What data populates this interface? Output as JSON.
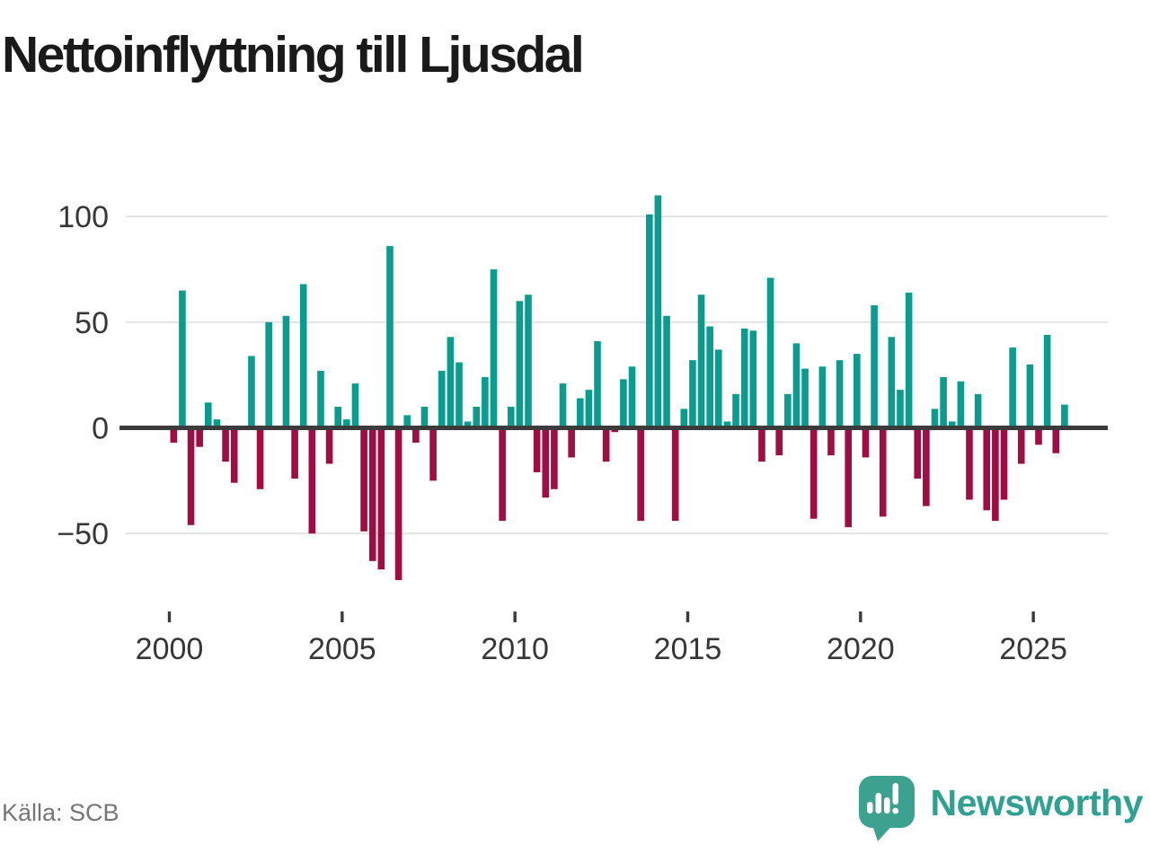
{
  "title": "Nettoinflyttning till Ljusdal",
  "source_label": "Källa: SCB",
  "brand": {
    "name": "Newsworthy",
    "icon": "bar-chart-speech-bubble-icon"
  },
  "colors": {
    "positive_bar": "#0a9c8e",
    "negative_bar": "#a00d42",
    "gridline": "#e3e3e3",
    "zero_line": "#3b3b3b",
    "axis_text": "#363636",
    "title_text": "#1a1a1a",
    "source_text": "#767676",
    "brand_bubble": "#3ca28f",
    "brand_text": "#2fa092"
  },
  "chart_data": {
    "type": "bar",
    "title": "Nettoinflyttning till Ljusdal",
    "frequency": "quarterly",
    "start_period": "2000Q1",
    "end_period": "2025Q4",
    "grid": true,
    "ylim": [
      -80,
      118
    ],
    "x_tick_labels": [
      "2000",
      "2005",
      "2010",
      "2015",
      "2020",
      "2025"
    ],
    "y_ticks": [
      100,
      50,
      0,
      -50
    ],
    "y_tick_labels": [
      "100",
      "50",
      "0",
      "−50"
    ],
    "values_by_year": {
      "2000": [
        -7,
        65,
        -46,
        -9
      ],
      "2001": [
        12,
        4,
        -16,
        -26
      ],
      "2002": [
        0,
        34,
        -29,
        50
      ],
      "2003": [
        0,
        53,
        -24,
        68
      ],
      "2004": [
        -50,
        27,
        -17,
        10
      ],
      "2005": [
        4,
        21,
        -49,
        -63
      ],
      "2006": [
        -67,
        86,
        -72,
        6
      ],
      "2007": [
        -7,
        10,
        -25,
        27
      ],
      "2008": [
        43,
        31,
        3,
        10
      ],
      "2009": [
        24,
        75,
        -44,
        10
      ],
      "2010": [
        60,
        63,
        -21,
        -33
      ],
      "2011": [
        -29,
        21,
        -14,
        14
      ],
      "2012": [
        18,
        41,
        -16,
        -2
      ],
      "2013": [
        23,
        29,
        -44,
        101
      ],
      "2014": [
        110,
        53,
        -44,
        9
      ],
      "2015": [
        32,
        63,
        48,
        37
      ],
      "2016": [
        3,
        16,
        47,
        46
      ],
      "2017": [
        -16,
        71,
        -13,
        16
      ],
      "2018": [
        40,
        28,
        -43,
        29
      ],
      "2019": [
        -13,
        32,
        -47,
        35
      ],
      "2020": [
        -14,
        58,
        -42,
        43
      ],
      "2021": [
        18,
        64,
        -24,
        -37
      ],
      "2022": [
        9,
        24,
        3,
        22
      ],
      "2023": [
        -34,
        16,
        -39,
        -44
      ],
      "2024": [
        -34,
        38,
        -17,
        30
      ],
      "2025": [
        -8,
        44,
        -12,
        11
      ]
    }
  }
}
